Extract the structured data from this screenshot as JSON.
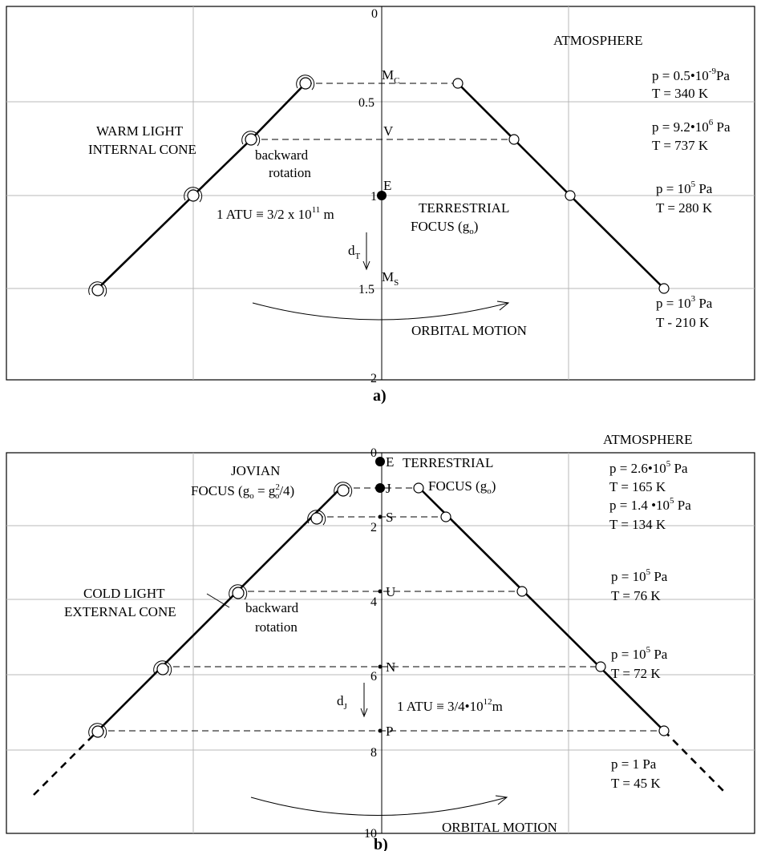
{
  "panel_a": {
    "caption": "a)",
    "ticks": [
      "0",
      "0.5",
      "1",
      "1.5",
      "2"
    ],
    "atmosphere": "ATMOSPHERE",
    "cone_label_1": "WARM LIGHT",
    "cone_label_2": "INTERNAL CONE",
    "backward_1": "backward",
    "backward_2": "rotation",
    "unit": "1 ATU ≡ 3/2 x 10",
    "unit_exp": "11",
    "unit_m": " m",
    "focus_1": "TERRESTRIAL",
    "focus_2": "FOCUS (g",
    "focus_sub": "o",
    "focus_close": ")",
    "dist_main": "d",
    "dist_sub": "T",
    "orbital": "ORBITAL MOTION",
    "planets": {
      "mc_main": "M",
      "mc_sub": "C",
      "v": "V",
      "e": "E",
      "ms_main": "M",
      "ms_sub": "S"
    },
    "conditions": [
      {
        "p_pre": "p = 0.5•10",
        "p_exp": "-9",
        "p_post": "Pa",
        "t": "T = 340 K"
      },
      {
        "p_pre": "p = 9.2•10",
        "p_exp": "6",
        "p_post": " Pa",
        "t": "T = 737 K"
      },
      {
        "p_pre": "p = 10",
        "p_exp": "5",
        "p_post": " Pa",
        "t": "T = 280 K"
      },
      {
        "p_pre": "p = 10",
        "p_exp": "3",
        "p_post": " Pa",
        "t": "T - 210 K"
      }
    ]
  },
  "panel_b": {
    "caption": "b)",
    "ticks": [
      "0",
      "2",
      "4",
      "6",
      "8",
      "10"
    ],
    "atmosphere": "ATMOSPHERE",
    "jovian_1": "JOVIAN",
    "jovian_2a": "FOCUS (g",
    "jovian_sub1": "o",
    "jovian_2b": " = g",
    "jovian_sup": "2",
    "jovian_sub2": "o",
    "jovian_2c": "/4)",
    "terr_1": "TERRESTRIAL",
    "terr_2": "FOCUS (g",
    "terr_sub": "o",
    "terr_close": ")",
    "cone_label_1": "COLD LIGHT",
    "cone_label_2": "EXTERNAL CONE",
    "backward_1": "backward",
    "backward_2": "rotation",
    "unit": "1 ATU ≡ 3/4•10",
    "unit_exp": "12",
    "unit_m": "m",
    "dist_main": "d",
    "dist_sub": "J",
    "orbital": "ORBITAL MOTION",
    "planets": {
      "e": "E",
      "j": "J",
      "s": "S",
      "u": "U",
      "n": "N",
      "p": "P"
    },
    "conditions": [
      {
        "p_pre": "p  = 2.6•10",
        "p_exp": "5",
        "p_post": " Pa",
        "t": "T = 165 K"
      },
      {
        "p_pre": "p = 1.4 •10",
        "p_exp": "5",
        "p_post": " Pa",
        "t": "T = 134 K"
      },
      {
        "p_pre": "p = 10",
        "p_exp": "5",
        "p_post": " Pa",
        "t": "T = 76 K"
      },
      {
        "p_pre": "p = 10",
        "p_exp": "5",
        "p_post": " Pa",
        "t": "T = 72 K"
      },
      {
        "p_pre": "p = 1 Pa",
        "p_exp": "",
        "p_post": "",
        "t": "T = 45 K"
      }
    ]
  }
}
